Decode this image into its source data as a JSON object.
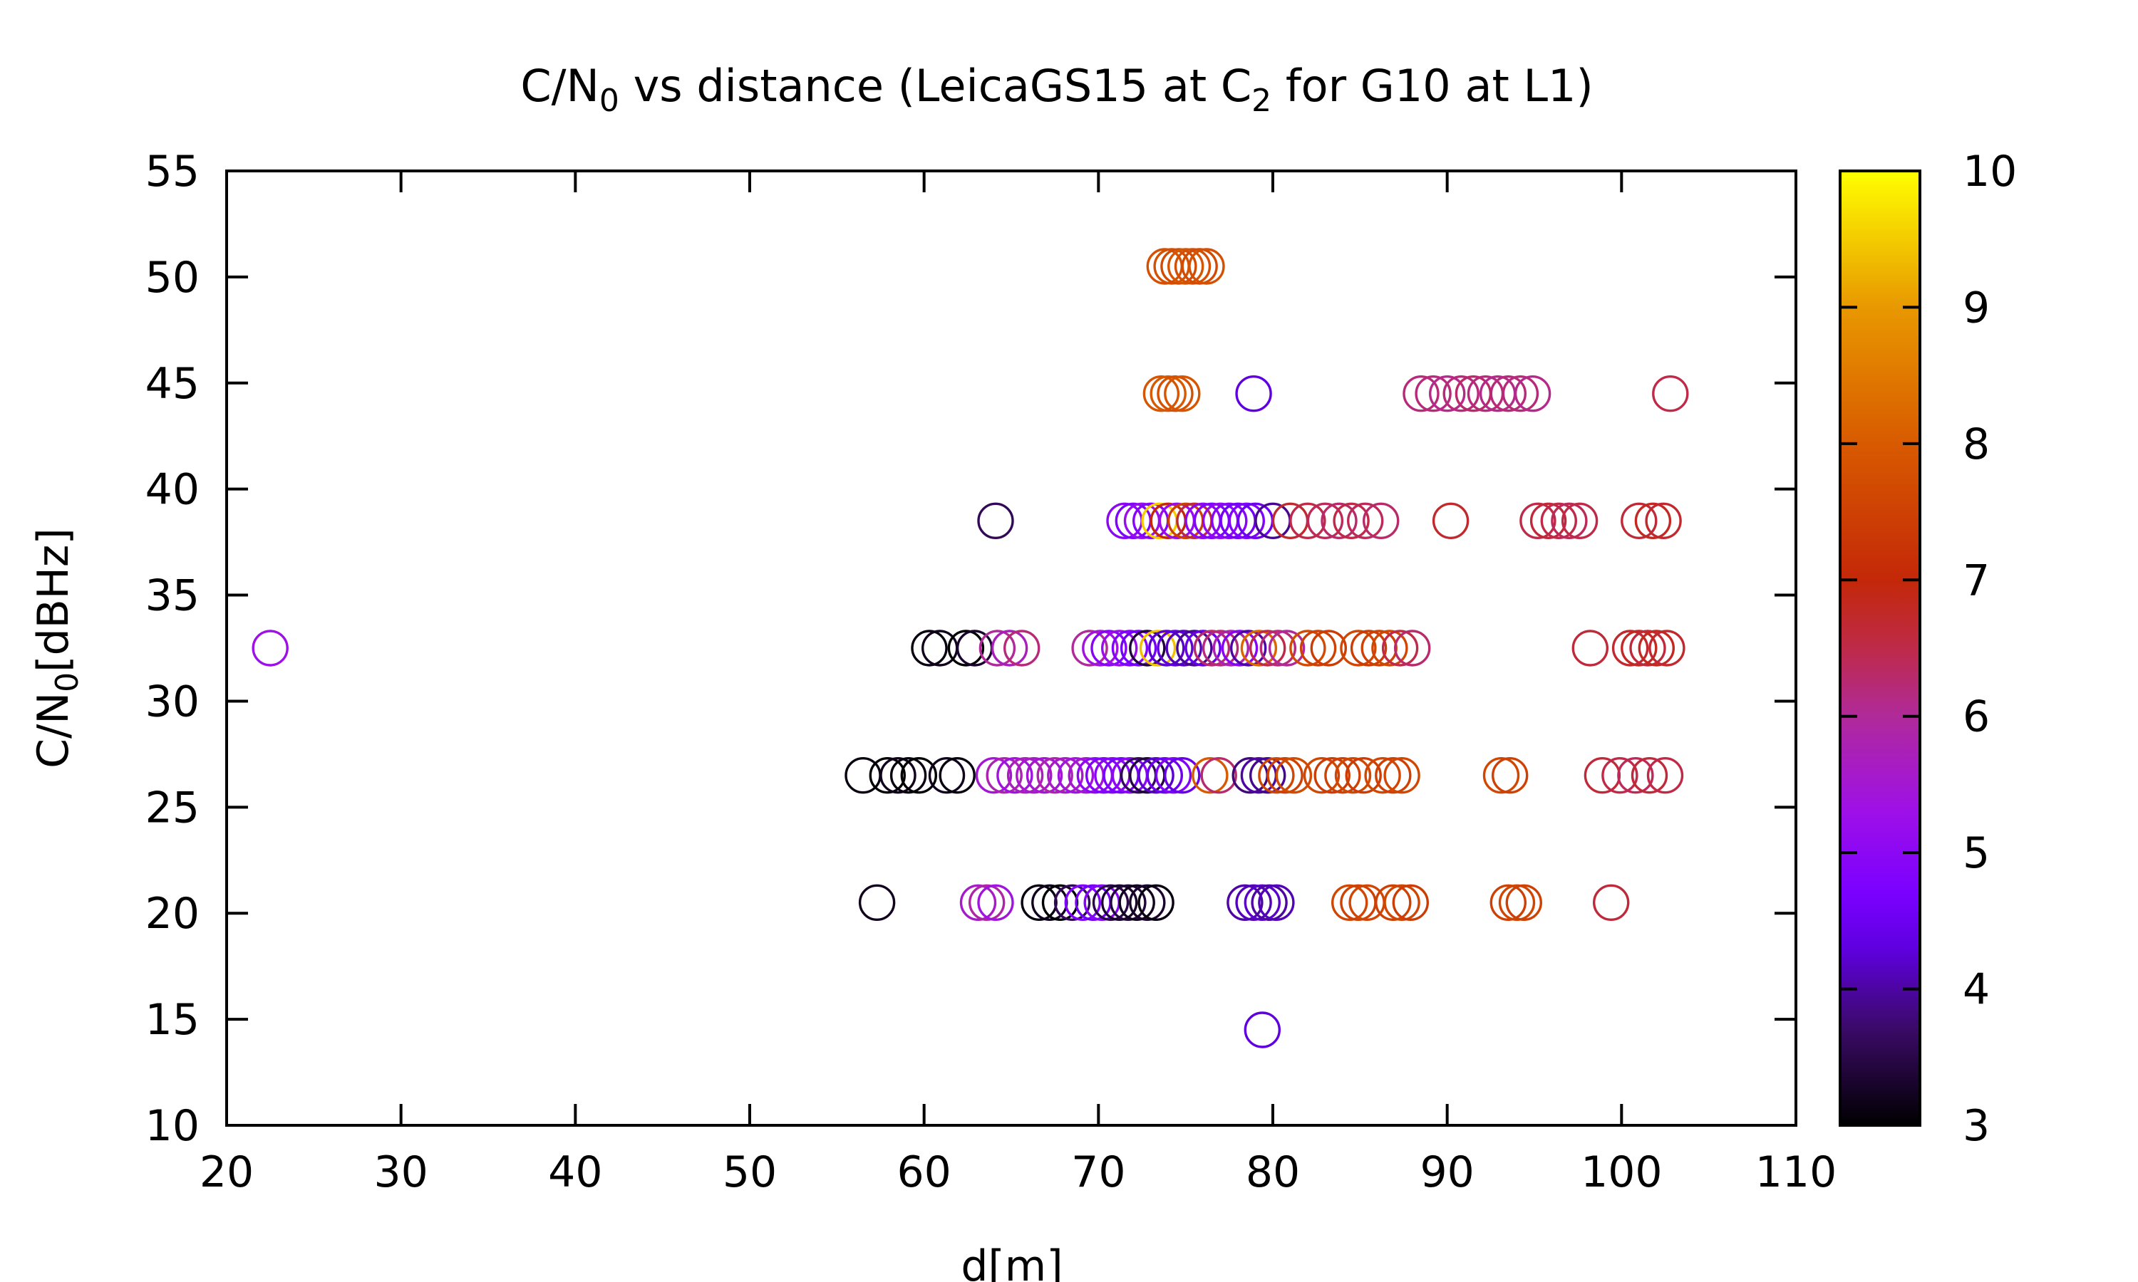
{
  "chart_data": {
    "type": "scatter",
    "title_parts": [
      "C/N",
      "0",
      " vs distance (LeicaGS15 at C",
      "2",
      " for G10 at L1)"
    ],
    "xlabel": "d[m]",
    "ylabel_parts": [
      "C/N",
      "0",
      "[dBHz]"
    ],
    "xlim": [
      20,
      110
    ],
    "ylim": [
      10,
      55
    ],
    "xticks": [
      20,
      30,
      40,
      50,
      60,
      70,
      80,
      90,
      100,
      110
    ],
    "yticks": [
      10,
      15,
      20,
      25,
      30,
      35,
      40,
      45,
      50,
      55
    ],
    "colorbar": {
      "range": [
        3,
        10
      ],
      "ticks": [
        3,
        4,
        5,
        6,
        7,
        8,
        9,
        10
      ],
      "stops": [
        {
          "value": 3.0,
          "color": "#000000"
        },
        {
          "value": 3.7,
          "color": "#3a0a66"
        },
        {
          "value": 4.3,
          "color": "#5f00e0"
        },
        {
          "value": 4.7,
          "color": "#7a00ff"
        },
        {
          "value": 5.3,
          "color": "#9e10e8"
        },
        {
          "value": 6.0,
          "color": "#b02a9a"
        },
        {
          "value": 6.5,
          "color": "#be2a48"
        },
        {
          "value": 7.0,
          "color": "#c42808"
        },
        {
          "value": 8.0,
          "color": "#d85a00"
        },
        {
          "value": 9.0,
          "color": "#e89800"
        },
        {
          "value": 10.0,
          "color": "#ffff00"
        }
      ]
    },
    "grid": false,
    "legend": "none",
    "series": [
      {
        "y": 50.5,
        "x": [
          73.8,
          74.2,
          74.6,
          75.0,
          75.4,
          75.8,
          76.2
        ],
        "c": [
          7.8,
          7.8,
          7.7,
          7.9,
          7.8,
          7.7,
          7.8
        ]
      },
      {
        "y": 44.5,
        "x": [
          73.6,
          74.0,
          74.4,
          74.8,
          78.9,
          88.5,
          89.2,
          90.0,
          90.8,
          91.5,
          92.2,
          92.9,
          93.5,
          94.2,
          94.9,
          102.8
        ],
        "c": [
          7.9,
          8.0,
          7.8,
          7.9,
          4.3,
          6.2,
          6.2,
          6.1,
          6.2,
          6.3,
          6.2,
          6.1,
          6.2,
          6.2,
          6.1,
          6.5
        ]
      },
      {
        "y": 38.5,
        "x": [
          64.1,
          71.5,
          72.0,
          72.5,
          73.0,
          73.5,
          74.0,
          74.5,
          75.0,
          75.5,
          76.0,
          76.5,
          77.0,
          77.5,
          78.0,
          78.5,
          79.0,
          80.0,
          81.0,
          82.0,
          83.0,
          83.8,
          84.5,
          85.3,
          86.2,
          90.2,
          95.2,
          95.8,
          96.4,
          97.0,
          97.6,
          101.0,
          101.8,
          102.4
        ],
        "c": [
          3.6,
          5.0,
          4.8,
          5.2,
          4.9,
          9.5,
          7.0,
          5.2,
          7.5,
          6.6,
          5.0,
          4.8,
          5.1,
          4.9,
          4.6,
          4.8,
          4.5,
          3.9,
          6.7,
          6.5,
          6.4,
          6.3,
          6.5,
          6.4,
          6.3,
          6.7,
          6.5,
          6.6,
          6.5,
          6.4,
          6.5,
          6.6,
          6.8,
          6.7
        ]
      },
      {
        "y": 32.5,
        "x": [
          22.5,
          60.3,
          60.9,
          62.4,
          62.9,
          64.2,
          64.9,
          65.6,
          69.5,
          70.1,
          70.6,
          71.2,
          71.8,
          72.3,
          72.8,
          73.4,
          73.9,
          74.4,
          74.9,
          75.5,
          76.0,
          76.5,
          77.0,
          77.6,
          78.1,
          78.6,
          79.2,
          79.7,
          80.3,
          80.8,
          82.0,
          82.6,
          83.2,
          84.9,
          85.5,
          86.1,
          86.7,
          87.3,
          88.0,
          98.2,
          100.5,
          101.0,
          101.5,
          102.0,
          102.6
        ],
        "c": [
          5.3,
          3.1,
          3.2,
          3.0,
          3.3,
          6.0,
          5.7,
          6.2,
          6.0,
          5.4,
          4.9,
          5.2,
          4.8,
          4.6,
          3.4,
          9.4,
          4.2,
          4.3,
          4.1,
          3.9,
          4.4,
          6.3,
          6.2,
          5.8,
          4.9,
          4.0,
          8.2,
          6.5,
          6.2,
          6.0,
          7.7,
          7.5,
          7.4,
          7.6,
          7.4,
          7.5,
          7.6,
          6.5,
          6.3,
          6.6,
          6.7,
          6.8,
          6.6,
          6.8,
          6.7
        ]
      },
      {
        "y": 26.5,
        "x": [
          56.5,
          57.9,
          58.5,
          59.1,
          59.7,
          61.3,
          61.9,
          64.0,
          64.6,
          65.2,
          65.8,
          66.3,
          66.9,
          67.5,
          68.1,
          68.7,
          69.3,
          69.8,
          70.3,
          70.8,
          71.3,
          71.8,
          72.3,
          72.8,
          73.3,
          73.8,
          74.3,
          74.8,
          76.4,
          76.9,
          78.7,
          79.2,
          79.7,
          80.2,
          80.7,
          81.2,
          82.8,
          83.4,
          84.0,
          84.6,
          85.2,
          86.3,
          86.9,
          87.4,
          93.1,
          93.6,
          98.9,
          99.9,
          100.8,
          101.6,
          102.5
        ],
        "c": [
          3.1,
          3.0,
          3.2,
          3.1,
          3.0,
          3.2,
          3.1,
          5.5,
          5.8,
          5.4,
          5.7,
          5.6,
          5.5,
          5.8,
          5.6,
          5.4,
          5.5,
          5.0,
          4.8,
          4.9,
          4.7,
          5.0,
          3.6,
          3.4,
          4.2,
          4.5,
          4.8,
          4.4,
          8.0,
          6.3,
          3.8,
          4.0,
          3.9,
          7.6,
          7.5,
          7.7,
          7.6,
          7.4,
          7.5,
          7.6,
          7.4,
          7.6,
          7.5,
          7.6,
          7.6,
          7.5,
          6.6,
          6.5,
          6.4,
          6.6,
          6.5
        ]
      },
      {
        "y": 20.5,
        "x": [
          57.3,
          63.1,
          63.6,
          64.1,
          66.6,
          67.2,
          67.8,
          68.5,
          69.1,
          69.7,
          70.2,
          70.7,
          71.2,
          71.7,
          72.2,
          72.8,
          73.3,
          78.4,
          78.9,
          79.4,
          79.8,
          80.2,
          84.4,
          84.9,
          85.4,
          86.9,
          87.4,
          87.9,
          93.5,
          94.0,
          94.4,
          99.4
        ],
        "c": [
          3.2,
          5.6,
          5.9,
          5.4,
          3.1,
          3.2,
          3.0,
          3.6,
          4.8,
          4.6,
          4.9,
          3.5,
          3.3,
          3.4,
          3.2,
          3.3,
          3.1,
          4.0,
          4.1,
          4.2,
          4.0,
          4.1,
          7.6,
          7.5,
          7.6,
          7.5,
          7.6,
          7.4,
          7.5,
          7.6,
          7.5,
          6.6
        ]
      },
      {
        "y": 14.5,
        "x": [
          79.4
        ],
        "c": [
          4.3
        ]
      }
    ]
  }
}
